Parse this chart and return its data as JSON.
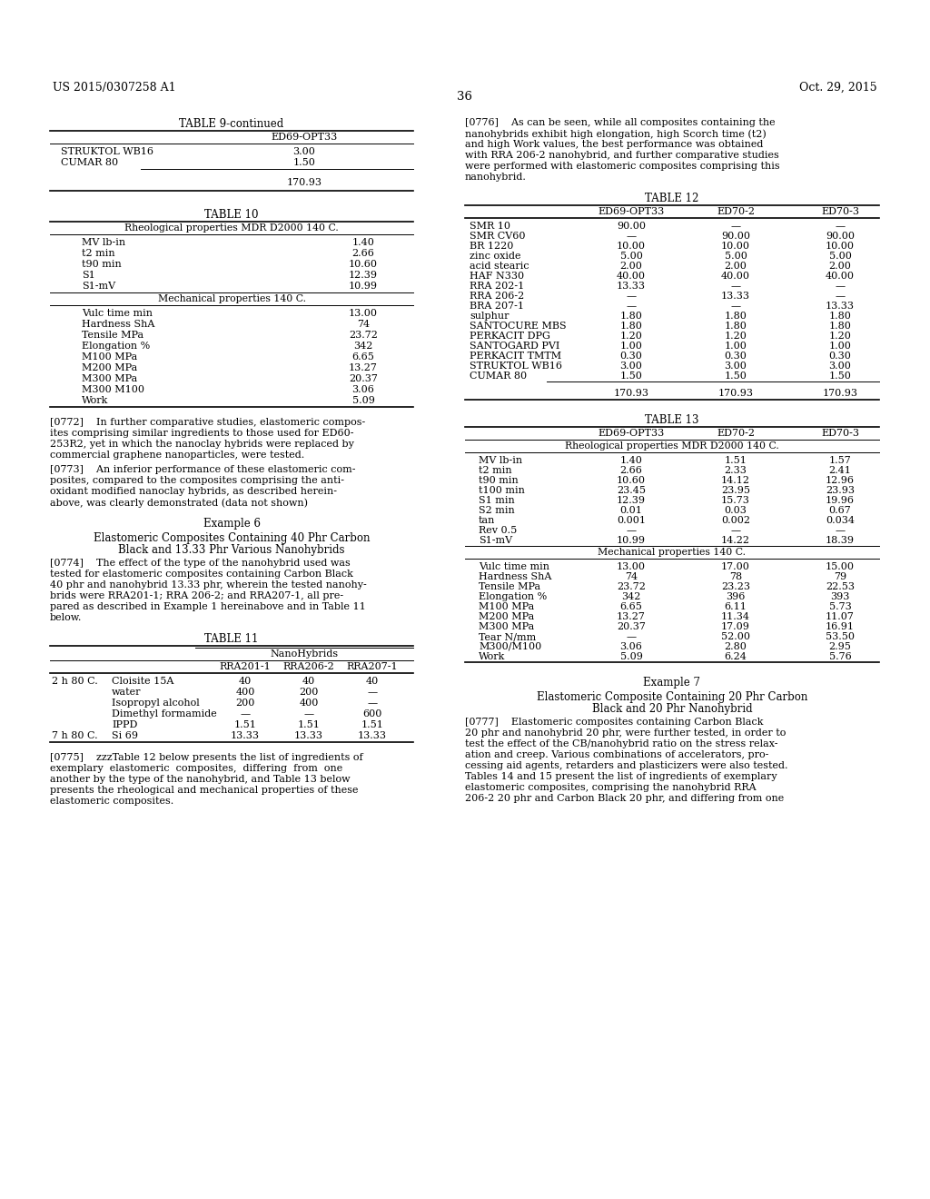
{
  "page_header_left": "US 2015/0307258 A1",
  "page_header_right": "Oct. 29, 2015",
  "page_number": "36",
  "background_color": "#ffffff",
  "text_color": "#000000",
  "table9_continued": {
    "title": "TABLE 9-continued",
    "col_header": "ED69-OPT33",
    "rows": [
      [
        "STRUKTOL WB16",
        "3.00"
      ],
      [
        "CUMAR 80",
        "1.50"
      ]
    ],
    "total": "170.93"
  },
  "table10": {
    "title": "TABLE 10",
    "subtitle": "Rheological properties MDR D2000 140 C.",
    "rheological_rows": [
      [
        "MV lb-in",
        "1.40"
      ],
      [
        "t2 min",
        "2.66"
      ],
      [
        "t90 min",
        "10.60"
      ],
      [
        "S1",
        "12.39"
      ],
      [
        "S1-mV",
        "10.99"
      ]
    ],
    "mechanical_subtitle": "Mechanical properties 140 C.",
    "mechanical_rows": [
      [
        "Vulc time min",
        "13.00"
      ],
      [
        "Hardness ShA",
        "74"
      ],
      [
        "Tensile MPa",
        "23.72"
      ],
      [
        "Elongation %",
        "342"
      ],
      [
        "M100 MPa",
        "6.65"
      ],
      [
        "M200 MPa",
        "13.27"
      ],
      [
        "M300 MPa",
        "20.37"
      ],
      [
        "M300 M100",
        "3.06"
      ],
      [
        "Work",
        "5.09"
      ]
    ]
  },
  "para_0772_lines": [
    "[0772]    In further comparative studies, elastomeric compos-",
    "ites comprising similar ingredients to those used for ED60-",
    "253R2, yet in which the nanoclay hybrids were replaced by",
    "commercial graphene nanoparticles, were tested."
  ],
  "para_0773_lines": [
    "[0773]    An inferior performance of these elastomeric com-",
    "posites, compared to the composites comprising the anti-",
    "oxidant modified nanoclay hybrids, as described herein-",
    "above, was clearly demonstrated (data not shown)"
  ],
  "example6_title": "Example 6",
  "example6_subtitle1": "Elastomeric Composites Containing 40 Phr Carbon",
  "example6_subtitle2": "Black and 13.33 Phr Various Nanohybrids",
  "para_0774_lines": [
    "[0774]    The effect of the type of the nanohybrid used was",
    "tested for elastomeric composites containing Carbon Black",
    "40 phr and nanohybrid 13.33 phr, wherein the tested nanohy-",
    "brids were RRA201-1; RRA 206-2; and RRA207-1, all pre-",
    "pared as described in Example 1 hereinabove and in Table 11",
    "below."
  ],
  "table11": {
    "title": "TABLE 11",
    "group_header": "NanoHybrids",
    "col_headers": [
      "RRA201-1",
      "RRA206-2",
      "RRA207-1"
    ],
    "rows": [
      [
        "2 h 80 C.",
        "Cloisite 15A",
        "40",
        "40",
        "40"
      ],
      [
        "",
        "water",
        "400",
        "200",
        "—"
      ],
      [
        "",
        "Isopropyl alcohol",
        "200",
        "400",
        "—"
      ],
      [
        "",
        "Dimethyl formamide",
        "—",
        "—",
        "600"
      ],
      [
        "",
        "IPPD",
        "1.51",
        "1.51",
        "1.51"
      ],
      [
        "7 h 80 C.",
        "Si 69",
        "13.33",
        "13.33",
        "13.33"
      ]
    ]
  },
  "para_0775_lines": [
    "[0775]    zzzTable 12 below presents the list of ingredients of",
    "exemplary  elastomeric  composites,  differing  from  one",
    "another by the type of the nanohybrid, and Table 13 below",
    "presents the rheological and mechanical properties of these",
    "elastomeric composites."
  ],
  "para_0776_lines": [
    "[0776]    As can be seen, while all composites containing the",
    "nanohybrids exhibit high elongation, high Scorch time (t2)",
    "and high Work values, the best performance was obtained",
    "with RRA 206-2 nanohybrid, and further comparative studies",
    "were performed with elastomeric composites comprising this",
    "nanohybrid."
  ],
  "table12": {
    "title": "TABLE 12",
    "col_headers": [
      "ED69-OPT33",
      "ED70-2",
      "ED70-3"
    ],
    "rows": [
      [
        "SMR 10",
        "90.00",
        "—",
        "—"
      ],
      [
        "SMR CV60",
        "—",
        "90.00",
        "90.00"
      ],
      [
        "BR 1220",
        "10.00",
        "10.00",
        "10.00"
      ],
      [
        "zinc oxide",
        "5.00",
        "5.00",
        "5.00"
      ],
      [
        "acid stearic",
        "2.00",
        "2.00",
        "2.00"
      ],
      [
        "HAF N330",
        "40.00",
        "40.00",
        "40.00"
      ],
      [
        "RRA 202-1",
        "13.33",
        "—",
        "—"
      ],
      [
        "RRA 206-2",
        "—",
        "13.33",
        "—"
      ],
      [
        "BRA 207-1",
        "—",
        "—",
        "13.33"
      ],
      [
        "sulphur",
        "1.80",
        "1.80",
        "1.80"
      ],
      [
        "SANTOCURE MBS",
        "1.80",
        "1.80",
        "1.80"
      ],
      [
        "PERKACIT DPG",
        "1.20",
        "1.20",
        "1.20"
      ],
      [
        "SANTOGARD PVI",
        "1.00",
        "1.00",
        "1.00"
      ],
      [
        "PERKACIT TMTM",
        "0.30",
        "0.30",
        "0.30"
      ],
      [
        "STRUKTOL WB16",
        "3.00",
        "3.00",
        "3.00"
      ],
      [
        "CUMAR 80",
        "1.50",
        "1.50",
        "1.50"
      ]
    ],
    "total": [
      "170.93",
      "170.93",
      "170.93"
    ]
  },
  "table13": {
    "title": "TABLE 13",
    "col_headers": [
      "ED69-OPT33",
      "ED70-2",
      "ED70-3"
    ],
    "subtitle": "Rheological properties MDR D2000 140 C.",
    "rheological_rows": [
      [
        "MV lb-in",
        "1.40",
        "1.51",
        "1.57"
      ],
      [
        "t2 min",
        "2.66",
        "2.33",
        "2.41"
      ],
      [
        "t90 min",
        "10.60",
        "14.12",
        "12.96"
      ],
      [
        "t100 min",
        "23.45",
        "23.95",
        "23.93"
      ],
      [
        "S1 min",
        "12.39",
        "15.73",
        "19.96"
      ],
      [
        "S2 min",
        "0.01",
        "0.03",
        "0.67"
      ],
      [
        "tan",
        "0.001",
        "0.002",
        "0.034"
      ],
      [
        "Rev 0.5",
        "—",
        "—",
        "—"
      ],
      [
        "S1-mV",
        "10.99",
        "14.22",
        "18.39"
      ]
    ],
    "mechanical_subtitle": "Mechanical properties 140 C.",
    "mechanical_rows": [
      [
        "Vulc time min",
        "13.00",
        "17.00",
        "15.00"
      ],
      [
        "Hardness ShA",
        "74",
        "78",
        "79"
      ],
      [
        "Tensile MPa",
        "23.72",
        "23.23",
        "22.53"
      ],
      [
        "Elongation %",
        "342",
        "396",
        "393"
      ],
      [
        "M100 MPa",
        "6.65",
        "6.11",
        "5.73"
      ],
      [
        "M200 MPa",
        "13.27",
        "11.34",
        "11.07"
      ],
      [
        "M300 MPa",
        "20.37",
        "17.09",
        "16.91"
      ],
      [
        "Tear N/mm",
        "—",
        "52.00",
        "53.50"
      ],
      [
        "M300/M100",
        "3.06",
        "2.80",
        "2.95"
      ],
      [
        "Work",
        "5.09",
        "6.24",
        "5.76"
      ]
    ]
  },
  "example7_title": "Example 7",
  "example7_subtitle1": "Elastomeric Composite Containing 20 Phr Carbon",
  "example7_subtitle2": "Black and 20 Phr Nanohybrid",
  "para_0777_lines": [
    "[0777]    Elastomeric composites containing Carbon Black",
    "20 phr and nanohybrid 20 phr, were further tested, in order to",
    "test the effect of the CB/nanohybrid ratio on the stress relax-",
    "ation and creep. Various combinations of accelerators, pro-",
    "cessing aid agents, retarders and plasticizers were also tested.",
    "Tables 14 and 15 present the list of ingredients of exemplary",
    "elastomeric composites, comprising the nanohybrid RRA",
    "206-2 20 phr and Carbon Black 20 phr, and differing from one"
  ]
}
